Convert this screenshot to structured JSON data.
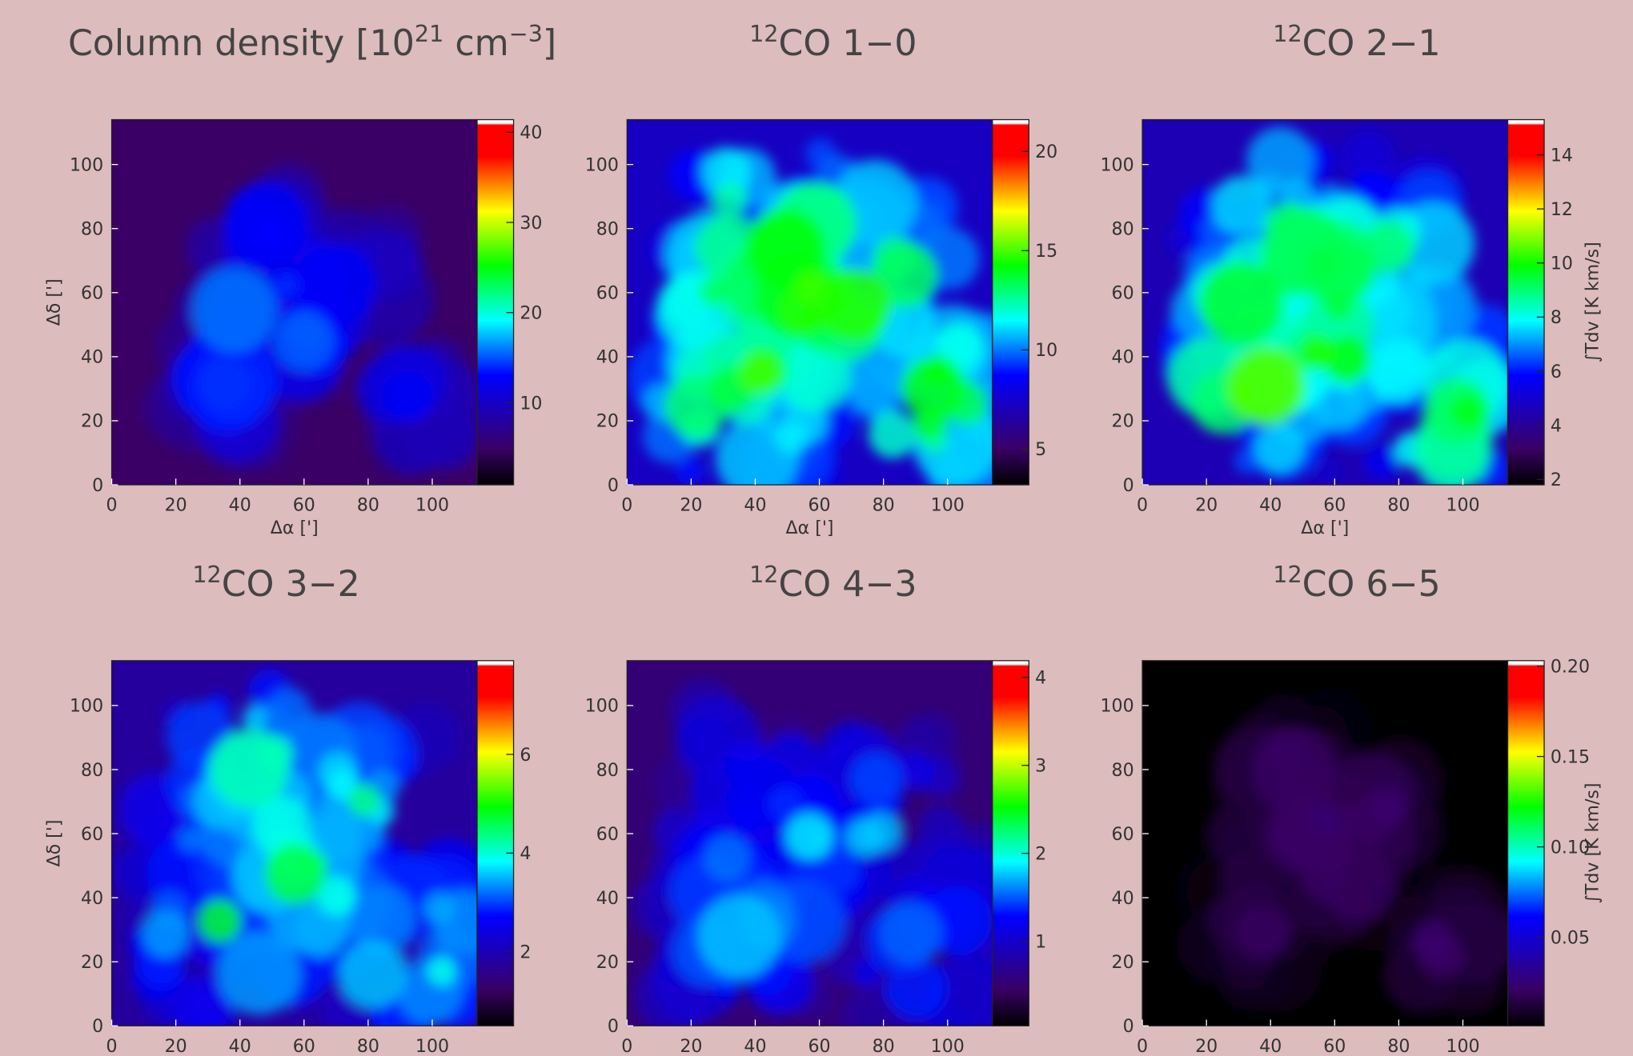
{
  "chart_data": [
    {
      "type": "image",
      "title_parts": [
        {
          "text": "Column density [10"
        },
        {
          "text": "21",
          "sup": true
        },
        {
          "text": " cm"
        },
        {
          "text": "−3",
          "sup": true
        },
        {
          "text": "]"
        }
      ],
      "xlabel": "Δα [']",
      "ylabel": "Δδ [']",
      "xlim": [
        0,
        114
      ],
      "xticks": [
        0,
        20,
        40,
        60,
        80,
        100
      ],
      "ylim": [
        0,
        114
      ],
      "yticks": [
        0,
        20,
        40,
        60,
        80,
        100
      ],
      "zlim": [
        0.9,
        41.4
      ],
      "zticks": [
        10,
        20,
        30,
        40
      ]
    },
    {
      "type": "image",
      "title_parts": [
        {
          "text": "12",
          "sup": true
        },
        {
          "text": "CO 1−0"
        }
      ],
      "xlabel": "Δα [']",
      "xlim": [
        0,
        114
      ],
      "xticks": [
        0,
        20,
        40,
        60,
        80,
        100
      ],
      "ylim": [
        0,
        114
      ],
      "yticks": [
        0,
        20,
        40,
        60,
        80,
        100
      ],
      "zlim": [
        3.2,
        21.6
      ],
      "zticks": [
        5,
        10,
        15,
        20
      ]
    },
    {
      "type": "image",
      "title_parts": [
        {
          "text": "12",
          "sup": true
        },
        {
          "text": "CO 2−1"
        }
      ],
      "xlabel": "Δα [']",
      "xlim": [
        0,
        114
      ],
      "xticks": [
        0,
        20,
        40,
        60,
        80,
        100
      ],
      "ylim": [
        0,
        114
      ],
      "yticks": [
        0,
        20,
        40,
        60,
        80,
        100
      ],
      "zlim": [
        1.8,
        15.3
      ],
      "zticks": [
        2,
        4,
        6,
        8,
        10,
        12,
        14
      ],
      "zlabel": "∫Tdv [K km/s]"
    },
    {
      "type": "image",
      "title_parts": [
        {
          "text": "12",
          "sup": true
        },
        {
          "text": "CO 3−2"
        }
      ],
      "ylabel": "Δδ [']",
      "xlim": [
        0,
        114
      ],
      "xticks": [
        0,
        20,
        40,
        60,
        80,
        100
      ],
      "ylim": [
        0,
        114
      ],
      "yticks": [
        0,
        20,
        40,
        60,
        80,
        100
      ],
      "zlim": [
        0.5,
        7.9
      ],
      "zticks": [
        2,
        4,
        6
      ]
    },
    {
      "type": "image",
      "title_parts": [
        {
          "text": "12",
          "sup": true
        },
        {
          "text": "CO 4−3"
        }
      ],
      "xlim": [
        0,
        114
      ],
      "xticks": [
        0,
        20,
        40,
        60,
        80,
        100
      ],
      "ylim": [
        0,
        114
      ],
      "yticks": [
        0,
        20,
        40,
        60,
        80,
        100
      ],
      "zlim": [
        0.04,
        4.19
      ],
      "zticks": [
        1,
        2,
        3,
        4
      ]
    },
    {
      "type": "image",
      "title_parts": [
        {
          "text": "12",
          "sup": true
        },
        {
          "text": "CO 6−5"
        }
      ],
      "xlim": [
        0,
        114
      ],
      "xticks": [
        0,
        20,
        40,
        60,
        80,
        100
      ],
      "ylim": [
        0,
        114
      ],
      "yticks": [
        0,
        20,
        40,
        60,
        80,
        100
      ],
      "zlim": [
        0.001,
        0.203
      ],
      "zticks": [
        0.05,
        {
          "value": 0.1,
          "label": "0.10"
        },
        0.15,
        {
          "value": 0.2,
          "label": "0.20"
        }
      ],
      "zlabel": "∫Tdv [K km/s]"
    }
  ]
}
